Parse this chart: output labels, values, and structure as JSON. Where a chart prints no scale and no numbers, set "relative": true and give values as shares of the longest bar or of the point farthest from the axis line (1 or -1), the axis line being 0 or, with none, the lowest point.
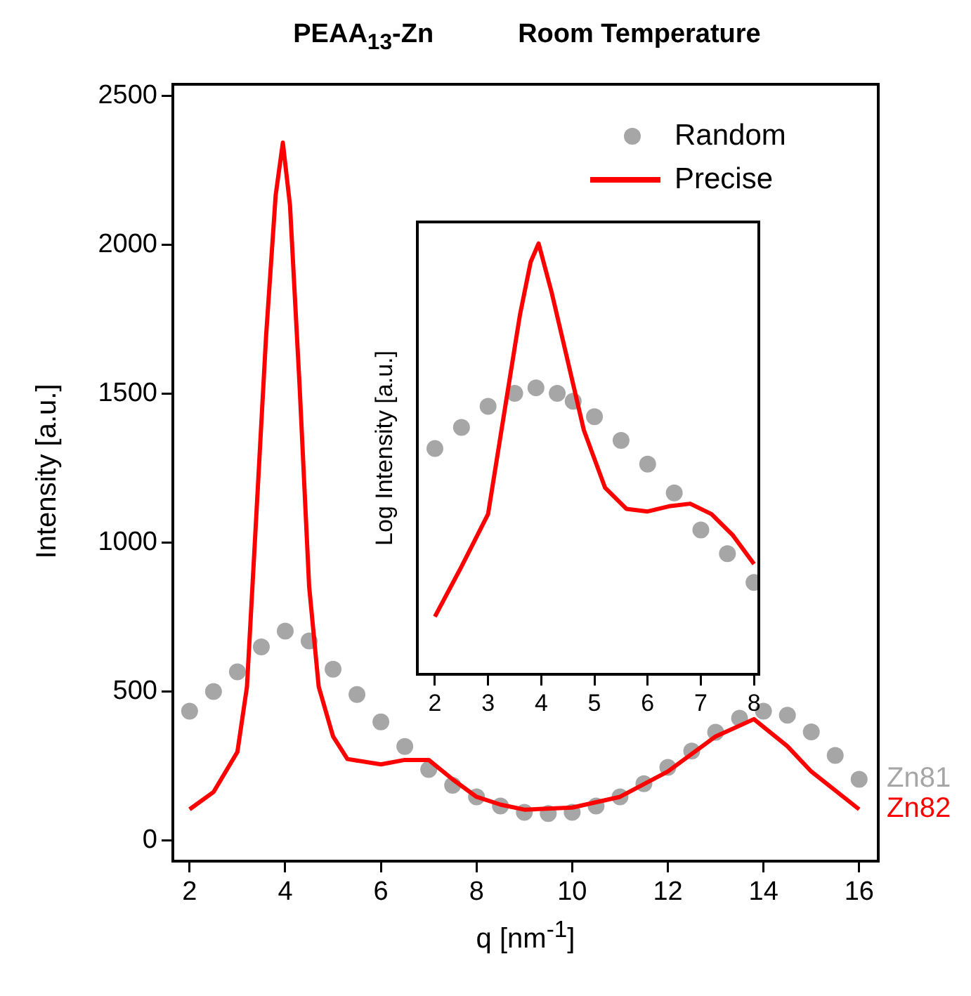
{
  "chart_data": [
    {
      "type": "line",
      "title": "PEAA$_{13}$-Zn",
      "subtitle": "Room Temperature",
      "xlabel": "q [nm$^{-1}$]",
      "ylabel": "Intensity [a.u.]",
      "xlim": [
        1.65,
        16.4
      ],
      "ylim": [
        -70,
        2540
      ],
      "xticks": [
        2,
        4,
        6,
        8,
        10,
        12,
        14,
        16
      ],
      "yticks": [
        0,
        500,
        1000,
        1500,
        2000,
        2500
      ],
      "legend": "top right",
      "annotations": [
        {
          "text": "Zn81",
          "x": 16,
          "y": 205
        },
        {
          "text": "Zn82",
          "x": 16,
          "y": 104
        }
      ],
      "series": [
        {
          "name": "Random",
          "type": "scatter",
          "marker": "circle",
          "color": "#a6a6a6",
          "x": [
            2,
            2.5,
            3,
            3.5,
            4,
            4.5,
            5,
            5.5,
            6,
            6.5,
            7,
            7.5,
            8,
            8.5,
            9,
            9.5,
            10,
            10.5,
            11,
            11.5,
            12,
            12.5,
            13,
            13.5,
            14,
            14.5,
            15,
            15.5,
            16
          ],
          "values": [
            434,
            500,
            566,
            650,
            703,
            670,
            575,
            490,
            398,
            315,
            238,
            185,
            146,
            115,
            94,
            90,
            94,
            115,
            146,
            190,
            245,
            300,
            363,
            410,
            434,
            420,
            364,
            285,
            205
          ]
        },
        {
          "name": "Precise",
          "type": "line",
          "color": "#ff0000",
          "x": [
            2,
            2.5,
            3,
            3.2,
            3.4,
            3.6,
            3.8,
            3.95,
            4.1,
            4.3,
            4.5,
            4.7,
            5,
            5.3,
            6,
            6.5,
            7,
            7.5,
            8,
            8.5,
            9,
            10,
            11,
            12,
            13,
            13.8,
            14.5,
            15,
            16
          ],
          "values": [
            104,
            162,
            297,
            516,
            1105,
            1695,
            2167,
            2344,
            2133,
            1528,
            853,
            516,
            349,
            273,
            255,
            270,
            270,
            205,
            146,
            120,
            103,
            110,
            146,
            231,
            349,
            407,
            316,
            231,
            104
          ]
        }
      ]
    },
    {
      "type": "line",
      "relative": true,
      "ylabel": "Log Intensity [a.u.]",
      "xlim": [
        1.67,
        8.09
      ],
      "xticks": [
        2,
        3,
        4,
        5,
        6,
        7,
        8
      ],
      "series": [
        {
          "type": "scatter",
          "marker": "circle",
          "color": "#a6a6a6",
          "x": [
            2,
            2.5,
            3,
            3.5,
            3.9,
            4.3,
            4.6,
            5,
            5.5,
            6,
            6.5,
            7,
            7.5,
            8
          ],
          "values": [
            0.524,
            0.573,
            0.622,
            0.652,
            0.665,
            0.652,
            0.634,
            0.598,
            0.543,
            0.488,
            0.421,
            0.335,
            0.28,
            0.213
          ]
        },
        {
          "type": "line",
          "color": "#ff0000",
          "x": [
            2,
            2.5,
            3,
            3.3,
            3.6,
            3.8,
            3.95,
            4.2,
            4.5,
            4.8,
            5.2,
            5.6,
            6,
            6.4,
            6.8,
            7.2,
            7.6,
            8
          ],
          "values": [
            0.134,
            0.25,
            0.372,
            0.604,
            0.835,
            0.957,
            1,
            0.884,
            0.726,
            0.567,
            0.433,
            0.384,
            0.378,
            0.39,
            0.396,
            0.372,
            0.323,
            0.256
          ]
        }
      ]
    }
  ]
}
